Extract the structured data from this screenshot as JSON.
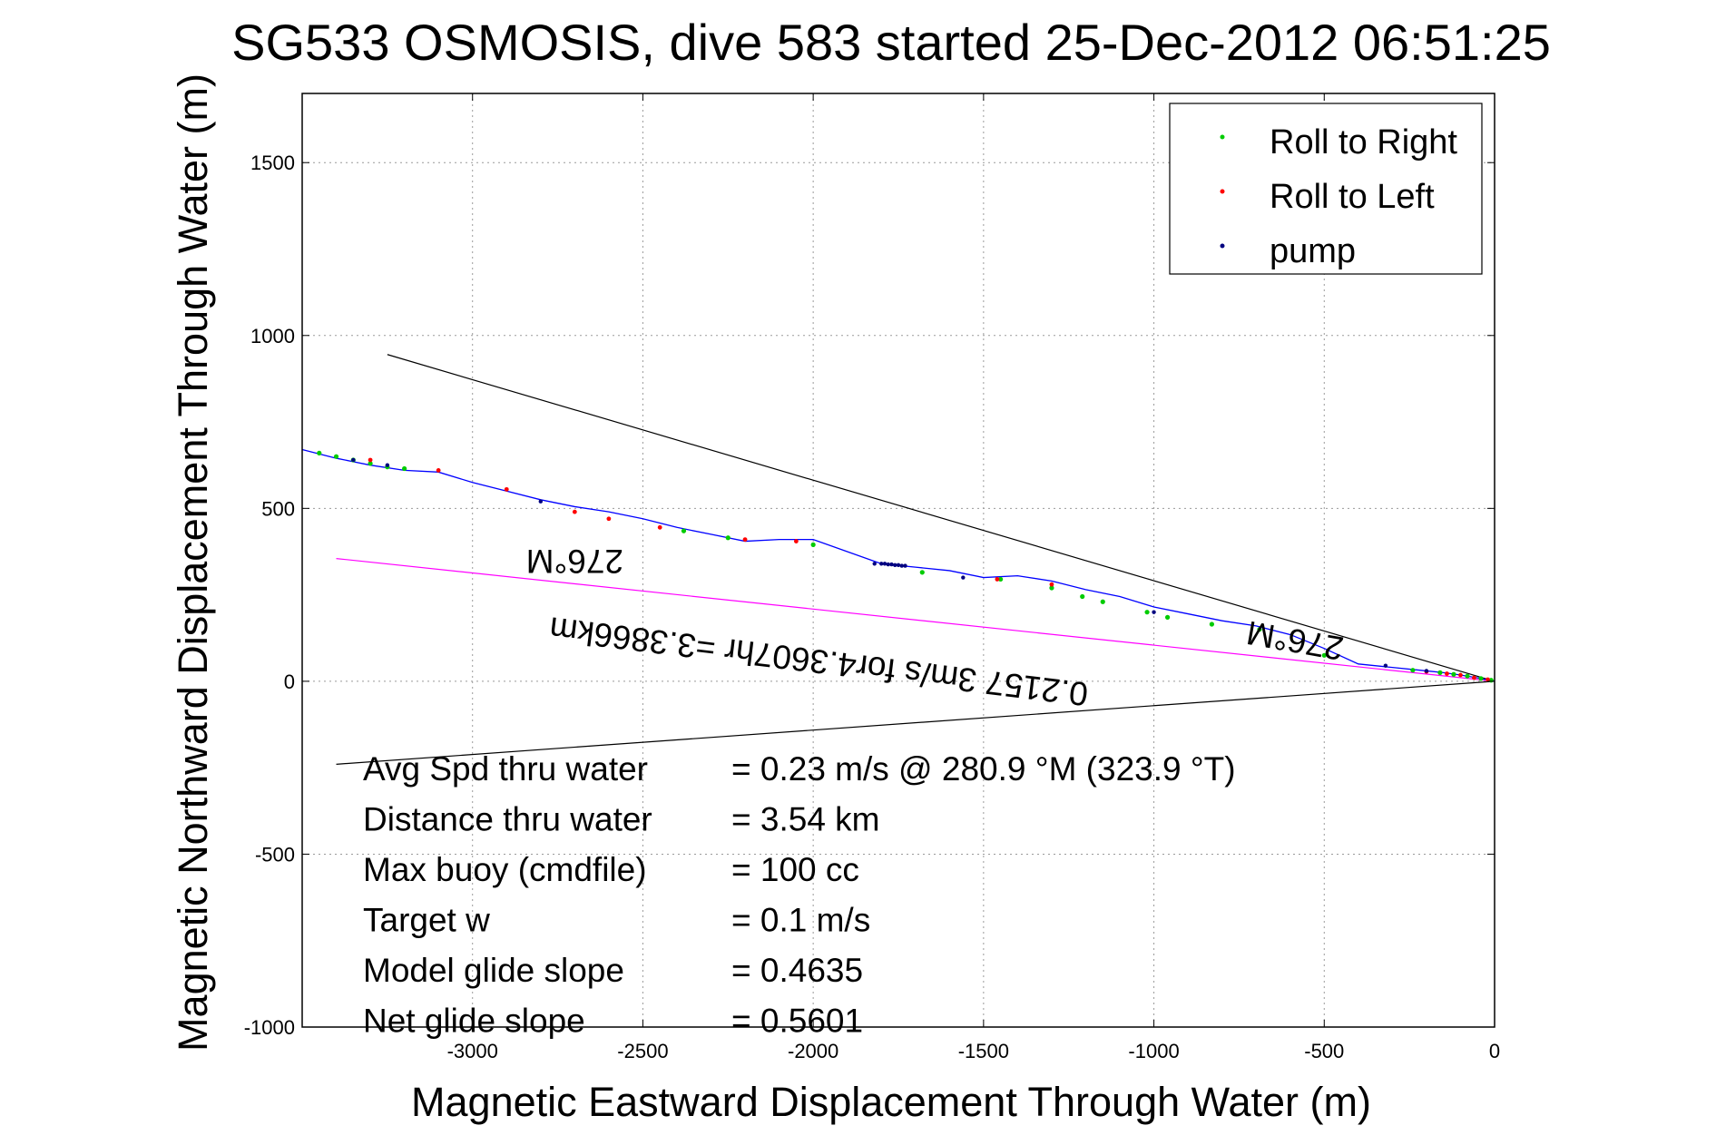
{
  "chart_data": {
    "type": "line",
    "title": "SG533 OSMOSIS, dive 583 started 25-Dec-2012 06:51:25",
    "xlabel": "Magnetic Eastward Displacement Through Water (m)",
    "ylabel": "Magnetic Northward Displacement Through Water (m)",
    "xlim": [
      -3500,
      0
    ],
    "ylim": [
      -1000,
      1700
    ],
    "xticks": [
      -3000,
      -2500,
      -2000,
      -1500,
      -1000,
      -500,
      0
    ],
    "yticks": [
      -1000,
      -500,
      0,
      500,
      1000,
      1500
    ],
    "grid": true,
    "legend_position": "top-right",
    "legend": [
      {
        "label": "Roll to Right",
        "color": "#00cc00"
      },
      {
        "label": "Roll to Left",
        "color": "#ff0000"
      },
      {
        "label": "pump",
        "color": "#000080"
      }
    ],
    "track": {
      "name": "glider track",
      "color": "#0000ff",
      "x": [
        0,
        -50,
        -100,
        -150,
        -200,
        -300,
        -400,
        -500,
        -600,
        -700,
        -800,
        -900,
        -1000,
        -1100,
        -1200,
        -1300,
        -1400,
        -1500,
        -1600,
        -1700,
        -1800,
        -1900,
        -2000,
        -2100,
        -2200,
        -2300,
        -2400,
        -2500,
        -2600,
        -2700,
        -2800,
        -2900,
        -3000,
        -3100,
        -3200,
        -3300,
        -3400,
        -3500
      ],
      "y": [
        0,
        10,
        18,
        25,
        30,
        40,
        50,
        95,
        135,
        160,
        175,
        195,
        215,
        245,
        265,
        290,
        305,
        300,
        320,
        330,
        340,
        375,
        410,
        410,
        405,
        425,
        445,
        470,
        490,
        505,
        525,
        550,
        575,
        605,
        610,
        625,
        645,
        670
      ]
    },
    "roll_right_points": {
      "x": [
        -10,
        -40,
        -80,
        -120,
        -160,
        -240,
        -500,
        -690,
        -830,
        -960,
        -1020,
        -1150,
        -1210,
        -1300,
        -1450,
        -1680,
        -2000,
        -2250,
        -2380,
        -3200,
        -3250,
        -3300,
        -3350,
        -3400,
        -3450
      ],
      "y": [
        3,
        8,
        15,
        20,
        25,
        32,
        75,
        150,
        165,
        185,
        200,
        230,
        245,
        270,
        295,
        315,
        395,
        415,
        435,
        615,
        620,
        630,
        640,
        650,
        660
      ]
    },
    "roll_left_points": {
      "x": [
        -20,
        -60,
        -100,
        -140,
        -200,
        -1300,
        -1460,
        -2050,
        -2200,
        -2450,
        -2600,
        -2700,
        -2900,
        -3100,
        -3300
      ],
      "y": [
        5,
        10,
        18,
        22,
        28,
        280,
        295,
        405,
        410,
        445,
        470,
        490,
        555,
        610,
        640
      ]
    },
    "pump_points": {
      "x": [
        -1820,
        -1800,
        -1790,
        -1780,
        -1770,
        -1760,
        -1750,
        -1740,
        -1730,
        -1560,
        -3250,
        -3350,
        -2800,
        -1000,
        -320,
        -200
      ],
      "y": [
        340,
        340,
        340,
        338,
        338,
        336,
        336,
        334,
        334,
        300,
        625,
        640,
        520,
        200,
        45,
        30
      ]
    },
    "reference_lines": [
      {
        "name": "upper bound",
        "color": "#000000",
        "x": [
          -3250,
          0
        ],
        "y": [
          945,
          0
        ]
      },
      {
        "name": "lower bound",
        "color": "#000000",
        "x": [
          -3400,
          0
        ],
        "y": [
          -240,
          0
        ]
      },
      {
        "name": "depth-averaged current",
        "color": "#ff00ff",
        "x": [
          -3400,
          0
        ],
        "y": [
          355,
          0
        ]
      }
    ],
    "annotations": [
      {
        "text": "276°M",
        "x": -2700,
        "y": 380,
        "rotation": 180
      },
      {
        "text": "276°M",
        "x": -580,
        "y": 150,
        "rotation": 190
      },
      {
        "text": "0.2157 3m/s for4.3607hr =3.3866km",
        "x": -1980,
        "y": 90,
        "rotation": 187
      }
    ],
    "stats": [
      {
        "label": "Avg Spd thru water",
        "value": "=  0.23 m/s @ 280.9 °M (323.9 °T)"
      },
      {
        "label": "Distance thru water",
        "value": "=  3.54 km"
      },
      {
        "label": "Max buoy (cmdfile)",
        "value": "= 100 cc"
      },
      {
        "label": "Target w",
        "value": "= 0.1 m/s"
      },
      {
        "label": "Model glide slope",
        "value": "= 0.4635"
      },
      {
        "label": "Net glide slope",
        "value": "= 0.5601"
      }
    ]
  }
}
